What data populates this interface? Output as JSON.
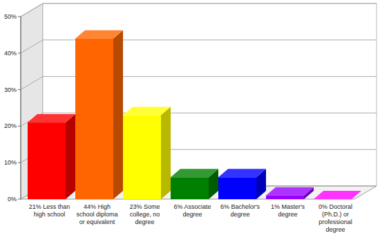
{
  "chart_data": {
    "type": "bar",
    "categories": [
      "21% Less than high school",
      "44% High school diploma or equivalent",
      "23% Some college, no degree",
      "6% Associate degree",
      "6% Bachelor's degree",
      "1% Master's degree",
      "0% Doctoral (Ph.D.) or professional degree"
    ],
    "values": [
      21,
      44,
      23,
      6,
      6,
      1,
      0
    ],
    "colors": [
      "#ff0000",
      "#ff6600",
      "#ffff00",
      "#008000",
      "#0000ff",
      "#9900ff",
      "#ff00ff"
    ],
    "ylim": [
      0,
      50
    ],
    "yticks": [
      {
        "value": 0,
        "label": "0%"
      },
      {
        "value": 10,
        "label": "10%"
      },
      {
        "value": 20,
        "label": "20%"
      },
      {
        "value": 30,
        "label": "30%"
      },
      {
        "value": 40,
        "label": "40%"
      },
      {
        "value": 50,
        "label": "50%"
      }
    ],
    "grid": true
  }
}
